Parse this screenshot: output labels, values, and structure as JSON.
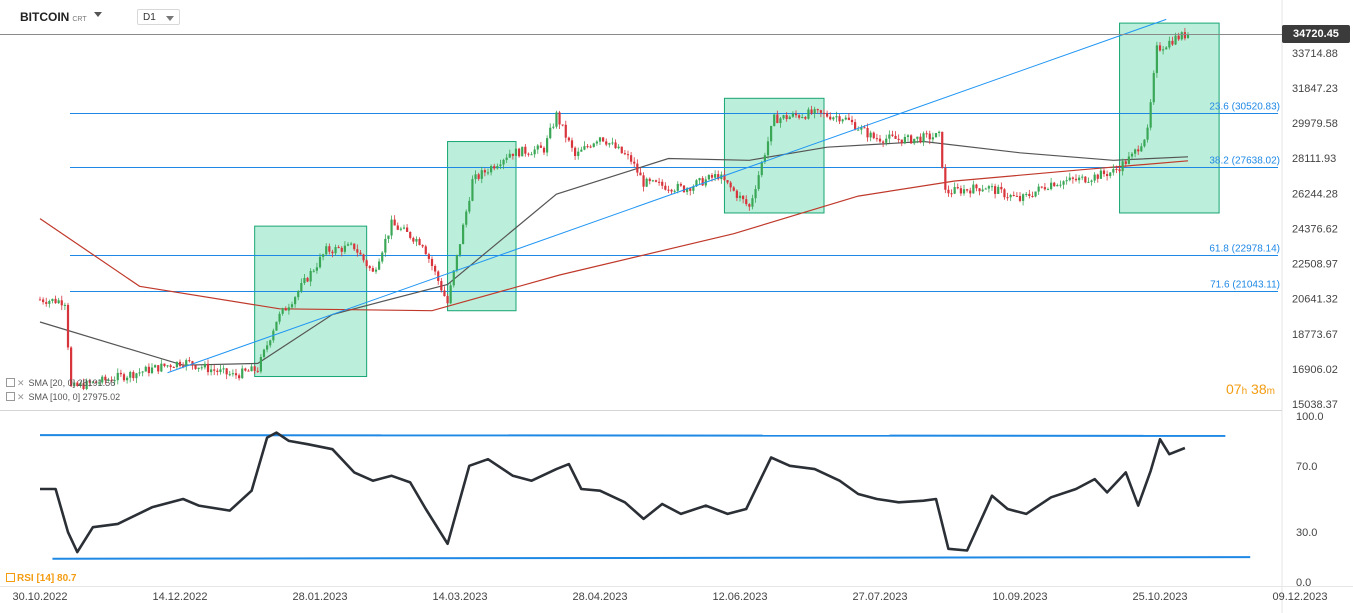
{
  "header": {
    "symbol": "BITCOIN",
    "symbol_type": "CRT",
    "timeframe": "D1"
  },
  "legend": {
    "sma1": "SMA [20, 0] 28191.56",
    "sma2": "SMA [100, 0] 27975.02",
    "rsi": "RSI [14] 80.7"
  },
  "timer": {
    "hours": "07",
    "minutes": "38"
  },
  "price_tag": "34720.45",
  "colors": {
    "up_candle": "#3aa757",
    "down_candle": "#d8343b",
    "sma_fast": "#555555",
    "sma_slow": "#c0392b",
    "fib_line": "#1e88e5",
    "trend_line": "#2196f3",
    "box_fill": "#2ecc8f",
    "box_stroke": "#17a673",
    "rsi_line": "#2b2f36",
    "rsi_channel": "#1e88e5",
    "countdown": "#f39c12"
  },
  "chart_data": [
    {
      "type": "candlestick",
      "ylim": [
        15038.37,
        34720.45
      ],
      "y_ticks": [
        "34720.45",
        "33714.88",
        "31847.23",
        "29979.58",
        "28111.93",
        "26244.28",
        "24376.62",
        "22508.97",
        "20641.32",
        "18773.67",
        "16906.02",
        "15038.37"
      ],
      "x_ticks": [
        "30.10.2022",
        "14.12.2022",
        "28.01.2023",
        "14.03.2023",
        "28.04.2023",
        "12.06.2023",
        "27.07.2023",
        "10.09.2023",
        "25.10.2023",
        "09.12.2023"
      ],
      "x_start": "2022-10-30",
      "last_price": 34720.45,
      "fibonacci": [
        {
          "label": "23.6 (30520.83)",
          "value": 30520.83
        },
        {
          "label": "38.2 (27638.02)",
          "value": 27638.02
        },
        {
          "label": "61.8 (22978.14)",
          "value": 22978.14
        },
        {
          "label": "71.6 (21043.11)",
          "value": 21043.11
        }
      ],
      "key_prices": [
        [
          "2022-10-30",
          20600
        ],
        [
          "2022-11-07",
          20500
        ],
        [
          "2022-11-09",
          15900
        ],
        [
          "2022-11-20",
          16300
        ],
        [
          "2022-12-05",
          16900
        ],
        [
          "2022-12-15",
          17300
        ],
        [
          "2022-12-31",
          16550
        ],
        [
          "2023-01-08",
          16900
        ],
        [
          "2023-01-14",
          19500
        ],
        [
          "2023-01-20",
          20800
        ],
        [
          "2023-01-30",
          23200
        ],
        [
          "2023-02-08",
          23400
        ],
        [
          "2023-02-14",
          22000
        ],
        [
          "2023-02-20",
          24600
        ],
        [
          "2023-03-02",
          23600
        ],
        [
          "2023-03-10",
          20400
        ],
        [
          "2023-03-18",
          26900
        ],
        [
          "2023-03-30",
          28400
        ],
        [
          "2023-04-10",
          28600
        ],
        [
          "2023-04-14",
          30400
        ],
        [
          "2023-04-20",
          28200
        ],
        [
          "2023-04-28",
          29300
        ],
        [
          "2023-05-08",
          28000
        ],
        [
          "2023-05-12",
          26800
        ],
        [
          "2023-05-25",
          26500
        ],
        [
          "2023-06-05",
          27200
        ],
        [
          "2023-06-15",
          25500
        ],
        [
          "2023-06-23",
          30200
        ],
        [
          "2023-07-05",
          30500
        ],
        [
          "2023-07-15",
          30300
        ],
        [
          "2023-07-25",
          29200
        ],
        [
          "2023-08-05",
          29100
        ],
        [
          "2023-08-15",
          29300
        ],
        [
          "2023-08-17",
          26300
        ],
        [
          "2023-08-30",
          26600
        ],
        [
          "2023-09-10",
          25900
        ],
        [
          "2023-09-20",
          26800
        ],
        [
          "2023-09-30",
          27000
        ],
        [
          "2023-10-10",
          27400
        ],
        [
          "2023-10-16",
          28200
        ],
        [
          "2023-10-21",
          29500
        ],
        [
          "2023-10-24",
          33900
        ],
        [
          "2023-10-30",
          34500
        ],
        [
          "2023-11-03",
          34720
        ]
      ],
      "sma_fast_series": [
        [
          "2022-10-30",
          19400
        ],
        [
          "2022-12-15",
          17100
        ],
        [
          "2023-01-08",
          17200
        ],
        [
          "2023-02-01",
          19800
        ],
        [
          "2023-03-10",
          21400
        ],
        [
          "2023-04-14",
          26200
        ],
        [
          "2023-05-20",
          28100
        ],
        [
          "2023-06-15",
          28000
        ],
        [
          "2023-07-10",
          28700
        ],
        [
          "2023-08-10",
          29000
        ],
        [
          "2023-09-10",
          28400
        ],
        [
          "2023-10-10",
          28000
        ],
        [
          "2023-11-03",
          28190
        ]
      ],
      "sma_slow_series": [
        [
          "2022-10-30",
          24900
        ],
        [
          "2022-12-01",
          21300
        ],
        [
          "2023-01-15",
          20100
        ],
        [
          "2023-03-05",
          20000
        ],
        [
          "2023-04-15",
          21900
        ],
        [
          "2023-06-10",
          24100
        ],
        [
          "2023-07-20",
          26100
        ],
        [
          "2023-08-20",
          26900
        ],
        [
          "2023-09-30",
          27500
        ],
        [
          "2023-11-03",
          27975
        ]
      ],
      "trend_line": [
        [
          "2022-12-10",
          16700
        ],
        [
          "2023-10-27",
          35500
        ]
      ],
      "highlight_boxes": [
        {
          "from": "2023-01-07",
          "to": "2023-02-12",
          "low": 16500,
          "high": 24500
        },
        {
          "from": "2023-03-10",
          "to": "2023-04-01",
          "low": 20000,
          "high": 29000
        },
        {
          "from": "2023-06-07",
          "to": "2023-07-09",
          "low": 25200,
          "high": 31300
        },
        {
          "from": "2023-10-12",
          "to": "2023-11-13",
          "low": 25200,
          "high": 35300
        }
      ]
    },
    {
      "type": "line",
      "name": "RSI [14]",
      "ylim": [
        0,
        100
      ],
      "y_ticks": [
        "100.0",
        "70.0",
        "30.0",
        "0.0"
      ],
      "channel": [
        {
          "from": [
            "2022-10-30",
            88.5
          ],
          "to": [
            "2023-11-15",
            88.0
          ]
        },
        {
          "from": [
            "2022-11-03",
            14.0
          ],
          "to": [
            "2023-11-23",
            15.0
          ]
        }
      ],
      "values": [
        [
          "2022-10-30",
          56
        ],
        [
          "2022-11-04",
          56
        ],
        [
          "2022-11-08",
          30
        ],
        [
          "2022-11-11",
          18
        ],
        [
          "2022-11-16",
          33
        ],
        [
          "2022-11-24",
          35
        ],
        [
          "2022-12-05",
          45
        ],
        [
          "2022-12-15",
          50
        ],
        [
          "2022-12-20",
          46
        ],
        [
          "2022-12-30",
          43
        ],
        [
          "2023-01-06",
          55
        ],
        [
          "2023-01-11",
          87
        ],
        [
          "2023-01-14",
          90
        ],
        [
          "2023-01-18",
          85
        ],
        [
          "2023-01-24",
          83
        ],
        [
          "2023-02-01",
          80
        ],
        [
          "2023-02-08",
          66
        ],
        [
          "2023-02-14",
          61
        ],
        [
          "2023-02-20",
          64
        ],
        [
          "2023-02-26",
          60
        ],
        [
          "2023-03-03",
          44
        ],
        [
          "2023-03-10",
          23
        ],
        [
          "2023-03-17",
          70
        ],
        [
          "2023-03-23",
          74
        ],
        [
          "2023-03-31",
          64
        ],
        [
          "2023-04-06",
          61
        ],
        [
          "2023-04-14",
          68
        ],
        [
          "2023-04-18",
          71
        ],
        [
          "2023-04-22",
          56
        ],
        [
          "2023-04-28",
          55
        ],
        [
          "2023-05-06",
          48
        ],
        [
          "2023-05-12",
          38
        ],
        [
          "2023-05-18",
          47
        ],
        [
          "2023-05-24",
          41
        ],
        [
          "2023-06-01",
          46
        ],
        [
          "2023-06-08",
          41
        ],
        [
          "2023-06-14",
          44
        ],
        [
          "2023-06-22",
          75
        ],
        [
          "2023-06-28",
          70
        ],
        [
          "2023-07-06",
          68
        ],
        [
          "2023-07-14",
          61
        ],
        [
          "2023-07-20",
          53
        ],
        [
          "2023-07-26",
          50
        ],
        [
          "2023-08-02",
          48
        ],
        [
          "2023-08-10",
          49
        ],
        [
          "2023-08-14",
          50
        ],
        [
          "2023-08-18",
          20
        ],
        [
          "2023-08-24",
          19
        ],
        [
          "2023-09-01",
          52
        ],
        [
          "2023-09-06",
          44
        ],
        [
          "2023-09-12",
          41
        ],
        [
          "2023-09-20",
          51
        ],
        [
          "2023-09-28",
          56
        ],
        [
          "2023-10-04",
          62
        ],
        [
          "2023-10-08",
          54
        ],
        [
          "2023-10-14",
          66
        ],
        [
          "2023-10-18",
          46
        ],
        [
          "2023-10-22",
          67
        ],
        [
          "2023-10-25",
          86
        ],
        [
          "2023-10-28",
          77
        ],
        [
          "2023-11-02",
          80.7
        ]
      ]
    }
  ]
}
